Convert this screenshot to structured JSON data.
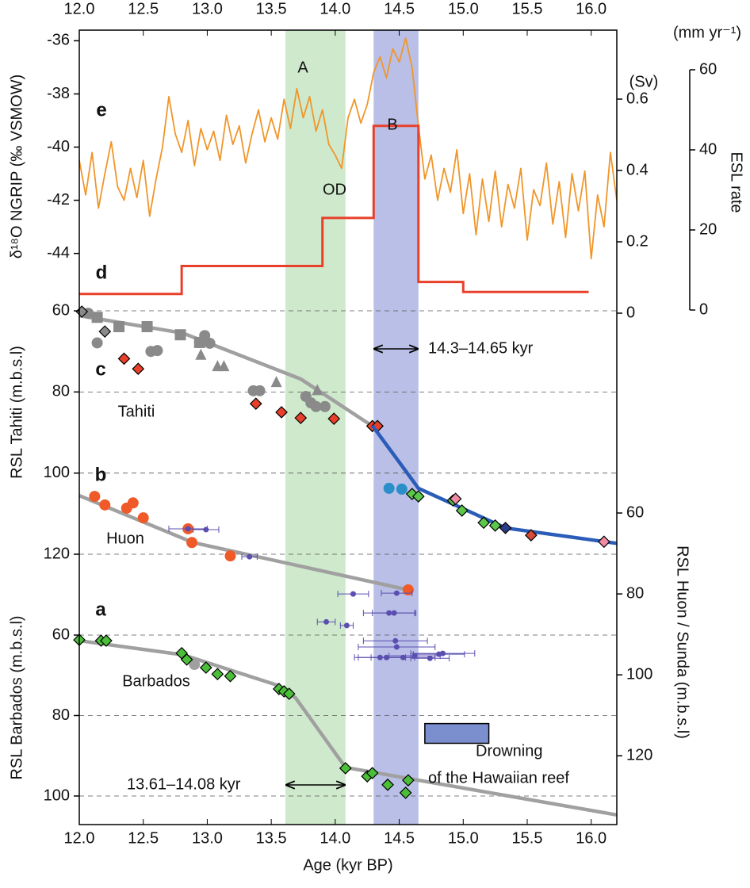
{
  "chart_data": {
    "type": "multi-axis",
    "x_label": "Age (kyr BP)",
    "xlim": [
      12.0,
      16.2
    ],
    "xticks": [
      {
        "value": 12,
        "label": "12.0"
      },
      12.5,
      {
        "value": 13,
        "label": "13.0"
      },
      13.5,
      {
        "value": 14,
        "label": "14.0"
      },
      14.5,
      {
        "value": 15,
        "label": "15.0"
      },
      15.5,
      {
        "value": 16,
        "label": "16.0"
      }
    ],
    "bands": [
      {
        "x": [
          13.61,
          14.08
        ],
        "color": "#cfe9cc"
      },
      {
        "x": [
          14.3,
          14.65
        ],
        "color": "#b9bfe6"
      }
    ],
    "axes": {
      "d18o": {
        "label": "δ¹⁸O NGRIP (‰ VSMOW)",
        "ylim": [
          -35.6,
          -45.8
        ],
        "yticks": [
          -36,
          -38,
          -40,
          -42,
          -44
        ],
        "grid": false
      },
      "sv": {
        "label": "(Sv)",
        "ylim": [
          0,
          0.6
        ],
        "yticks": [
          0,
          0.2,
          0.4,
          0.6
        ],
        "grid": false
      },
      "esl": {
        "label": "ESL rate",
        "unit": "(mm yr⁻¹)",
        "ylim": [
          0,
          60
        ],
        "yticks": [
          0,
          20,
          40,
          60
        ],
        "grid": false
      },
      "tahiti": {
        "label": "RSL Tahiti (m.b.s.l)",
        "ylim": [
          58,
          124
        ],
        "yticks": [
          60,
          80,
          100,
          120
        ],
        "grid": true
      },
      "huon": {
        "label": "RSL Huon / Sunda (m.b.s.l)",
        "ylim": [
          50,
          137
        ],
        "yticks": [
          60,
          80,
          100,
          120
        ],
        "grid": false
      },
      "barbados": {
        "label": "RSL Barbados (m.b.s.l)",
        "ylim": [
          55,
          107
        ],
        "yticks": [
          60,
          80,
          100
        ],
        "grid": true
      }
    },
    "series": [
      {
        "type": "line",
        "axis": "d18o",
        "color": "#f0962a",
        "x": [
          12.0,
          12.05,
          12.1,
          12.15,
          12.2,
          12.25,
          12.3,
          12.35,
          12.4,
          12.45,
          12.5,
          12.55,
          12.6,
          12.65,
          12.7,
          12.75,
          12.8,
          12.85,
          12.9,
          12.95,
          13.0,
          13.05,
          13.1,
          13.15,
          13.2,
          13.25,
          13.3,
          13.35,
          13.4,
          13.45,
          13.5,
          13.55,
          13.6,
          13.65,
          13.7,
          13.75,
          13.8,
          13.85,
          13.9,
          13.95,
          14.0,
          14.05,
          14.1,
          14.15,
          14.2,
          14.25,
          14.3,
          14.35,
          14.4,
          14.45,
          14.5,
          14.55,
          14.6,
          14.65,
          14.7,
          14.75,
          14.8,
          14.85,
          14.9,
          14.95,
          15.0,
          15.05,
          15.1,
          15.15,
          15.2,
          15.25,
          15.3,
          15.35,
          15.4,
          15.45,
          15.5,
          15.55,
          15.6,
          15.65,
          15.7,
          15.75,
          15.8,
          15.85,
          15.9,
          15.95,
          16.0,
          16.05,
          16.1,
          16.15,
          16.2
        ],
        "values": [
          -40.5,
          -41.8,
          -40.2,
          -42.3,
          -41.0,
          -39.8,
          -41.5,
          -42.0,
          -40.8,
          -41.9,
          -40.5,
          -42.6,
          -41.2,
          -40.0,
          -38.1,
          -39.5,
          -40.2,
          -39.0,
          -40.7,
          -39.3,
          -40.1,
          -39.4,
          -40.5,
          -38.8,
          -39.9,
          -39.2,
          -40.6,
          -39.5,
          -38.6,
          -39.8,
          -38.9,
          -39.7,
          -38.2,
          -39.3,
          -37.8,
          -38.9,
          -38.1,
          -39.4,
          -38.6,
          -39.9,
          -40.3,
          -40.8,
          -38.9,
          -38.2,
          -39.1,
          -38.4,
          -37.2,
          -36.6,
          -37.4,
          -36.3,
          -36.8,
          -35.9,
          -37.0,
          -39.2,
          -41.2,
          -40.3,
          -42.0,
          -40.8,
          -41.7,
          -40.1,
          -42.5,
          -41.0,
          -43.3,
          -41.2,
          -42.8,
          -40.9,
          -43.0,
          -41.4,
          -42.3,
          -40.8,
          -43.5,
          -41.6,
          -42.2,
          -40.6,
          -42.9,
          -41.3,
          -43.4,
          -41.0,
          -42.4,
          -40.9,
          -44.2,
          -41.8,
          -43.0,
          -40.2,
          -42.0
        ]
      },
      {
        "type": "step",
        "axis": "esl",
        "color": "#e8402a",
        "bins": [
          12.0,
          12.8,
          13.9,
          14.3,
          14.65,
          15.0,
          15.98
        ],
        "values": [
          4,
          11,
          23,
          46,
          7,
          4.5
        ]
      },
      {
        "type": "line",
        "axis": "tahiti",
        "color": "#a0a0a0",
        "x": [
          12.0,
          12.81,
          13.73,
          14.29
        ],
        "values": [
          61.2,
          65.5,
          76.8,
          88.4
        ]
      },
      {
        "type": "scatter",
        "axis": "tahiti",
        "color": "#8a8a8a",
        "marker": "circle",
        "x": [
          12.07,
          12.14,
          12.56,
          12.61,
          12.98,
          13.02,
          13.36,
          13.41,
          13.77,
          13.81,
          13.85,
          13.92
        ],
        "values": [
          60.6,
          67.9,
          70.0,
          69.8,
          66.1,
          68.0,
          79.7,
          79.7,
          81.1,
          82.7,
          83.6,
          83.6
        ]
      },
      {
        "type": "scatter",
        "axis": "tahiti",
        "color": "#8a8a8a",
        "marker": "square",
        "x": [
          12.14,
          12.31,
          12.53,
          12.79,
          12.94
        ],
        "values": [
          61.6,
          63.9,
          63.9,
          65.9,
          67.8
        ]
      },
      {
        "type": "scatter",
        "axis": "tahiti",
        "color": "#8a8a8a",
        "marker": "triangle",
        "x": [
          12.95,
          13.08,
          13.13,
          13.54,
          13.86
        ],
        "values": [
          70.9,
          73.7,
          73.7,
          77.6,
          79.6
        ]
      },
      {
        "type": "scatter",
        "axis": "tahiti",
        "color": "#8a8a8a",
        "marker": "diamond",
        "x": [
          12.02,
          12.2
        ],
        "values": [
          60.2,
          65.1
        ]
      },
      {
        "type": "scatter",
        "axis": "tahiti",
        "color": "#e8402a",
        "marker": "diamond",
        "x": [
          12.35,
          12.46,
          13.38,
          13.58,
          13.73,
          13.99,
          14.29,
          14.33
        ],
        "values": [
          71.8,
          74.3,
          82.9,
          85.0,
          86.4,
          86.6,
          88.4,
          88.4
        ]
      },
      {
        "type": "line",
        "axis": "huon",
        "color": "#2a5cb8",
        "x": [
          14.29,
          14.65,
          15.33,
          16.2
        ],
        "values": [
          38.4,
          53.9,
          63.7,
          67.5
        ]
      },
      {
        "type": "scatter",
        "axis": "huon",
        "color": "#2a8fc8",
        "marker": "circle",
        "x": [
          14.42,
          14.52
        ],
        "values": [
          53.9,
          54.1
        ]
      },
      {
        "type": "scatter",
        "axis": "huon",
        "color": "#5cc84a",
        "marker": "diamond",
        "x": [
          14.6,
          14.65,
          14.92,
          14.99,
          15.16,
          15.25
        ],
        "values": [
          55.3,
          55.9,
          56.9,
          59.4,
          62.4,
          63.1
        ]
      },
      {
        "type": "scatter",
        "axis": "huon",
        "color": "#f08aa0",
        "marker": "diamond",
        "x": [
          14.94,
          16.1
        ],
        "values": [
          56.5,
          67.1
        ]
      },
      {
        "type": "scatter",
        "axis": "huon",
        "color": "#2a3c8a",
        "marker": "diamond",
        "x": [
          15.33
        ],
        "values": [
          63.7
        ]
      },
      {
        "type": "scatter",
        "axis": "huon",
        "color": "#d84a3a",
        "marker": "diamond",
        "x": [
          15.53
        ],
        "values": [
          65.5
        ]
      },
      {
        "type": "line",
        "axis": "huon",
        "color": "#a0a0a0",
        "x": [
          12.0,
          12.89,
          14.57
        ],
        "values": [
          55.7,
          67.3,
          79.0
        ]
      },
      {
        "type": "scatter",
        "axis": "huon",
        "color": "#f05a28",
        "marker": "circle",
        "x": [
          12.12,
          12.2,
          12.37,
          12.42,
          12.5,
          12.85,
          12.88,
          13.18,
          14.57
        ],
        "values": [
          55.9,
          58.0,
          58.8,
          57.5,
          61.2,
          63.9,
          67.3,
          70.6,
          79.0
        ]
      },
      {
        "type": "errorbar",
        "axis": "huon",
        "color": "#5a4fb0",
        "x": [
          12.85,
          12.99,
          13.33,
          14.14,
          14.48,
          13.93,
          14.09,
          14.42,
          14.46,
          14.47,
          14.48,
          14.35,
          14.4,
          14.53,
          14.62,
          14.74,
          14.81,
          14.84
        ],
        "values": [
          63.9,
          64.1,
          70.8,
          80.0,
          79.8,
          86.9,
          87.8,
          84.7,
          84.7,
          91.6,
          93.1,
          95.7,
          95.7,
          95.7,
          95.3,
          95.9,
          94.9,
          94.7
        ],
        "xerr": [
          0.15,
          0.1,
          0.06,
          0.12,
          0.12,
          0.07,
          0.05,
          0.2,
          0.17,
          0.25,
          0.3,
          0.2,
          0.22,
          0.25,
          0.2,
          0.15,
          0.2,
          0.25
        ]
      },
      {
        "type": "line",
        "axis": "barbados",
        "color": "#a0a0a0",
        "x": [
          12.0,
          12.81,
          13.56,
          13.69,
          14.08,
          16.2
        ],
        "values": [
          61.4,
          64.9,
          72.6,
          75.6,
          92.9,
          104.7
        ]
      },
      {
        "type": "scatter",
        "axis": "barbados",
        "color": "#a0a0a0",
        "marker": "circle",
        "x": [
          12.9
        ],
        "values": [
          67.3
        ]
      },
      {
        "type": "scatter",
        "axis": "barbados",
        "color": "#4cbf3a",
        "marker": "diamond",
        "x": [
          12.0,
          12.17,
          12.21,
          12.8,
          12.84,
          12.99,
          13.08,
          13.18,
          13.56,
          13.6,
          13.64,
          14.08,
          14.25,
          14.29,
          14.41,
          14.57,
          14.55
        ],
        "values": [
          61.2,
          61.4,
          61.4,
          64.5,
          66.1,
          68.1,
          69.7,
          70.2,
          73.4,
          74.0,
          74.6,
          93.1,
          95.1,
          94.3,
          97.2,
          96.1,
          99.2
        ]
      }
    ],
    "drowning_box": {
      "axis": "barbados",
      "color": "#7b8fce",
      "x": [
        14.7,
        15.2
      ],
      "values": [
        82,
        86.9
      ]
    },
    "annotations": [
      "A",
      "B",
      "OD",
      "e",
      "d",
      "c",
      "b",
      "a",
      "Tahiti",
      "Huon",
      "Barbados",
      "14.3–14.65 kyr",
      "13.61–14.08 kyr",
      "Drowning",
      "of the Hawaiian reef"
    ]
  }
}
